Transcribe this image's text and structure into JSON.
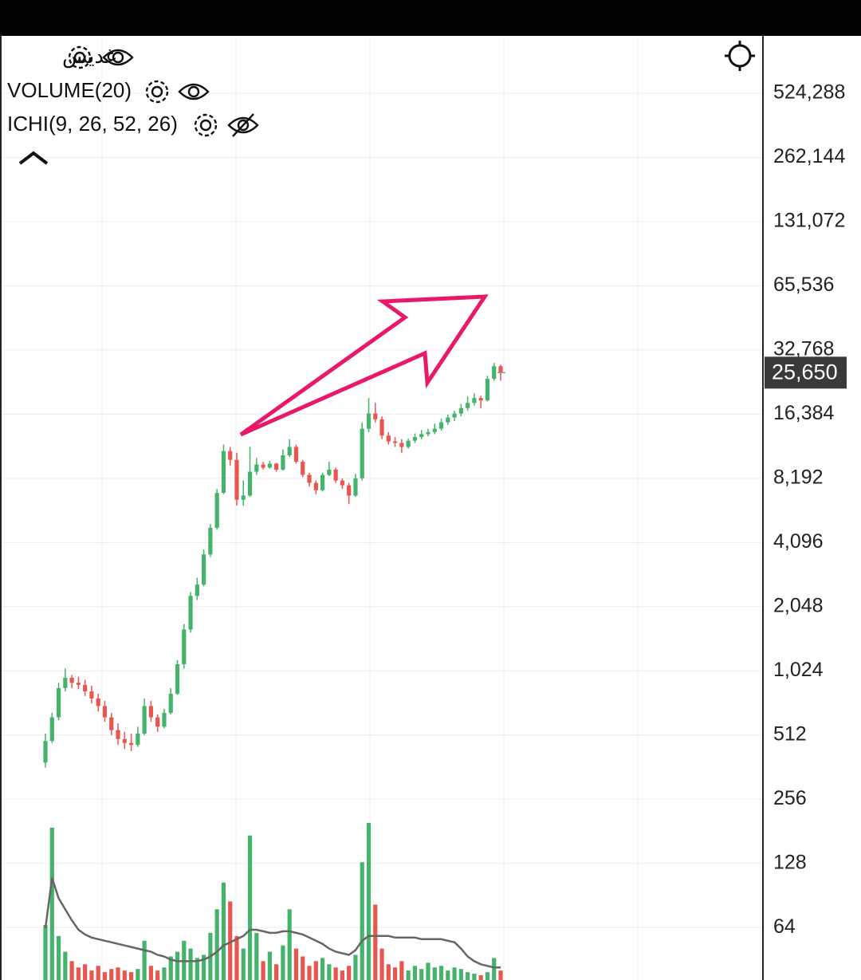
{
  "chart_data": {
    "type": "candlestick",
    "indicators": [
      "غديس",
      "VOLUME(20)",
      "ICHI(9, 26, 52, 26)"
    ],
    "log_scale": true,
    "log_base": 2,
    "grid": true,
    "ylim": [
      36.3,
      975000
    ],
    "yticks": [
      {
        "value": 524288,
        "label": "524,288"
      },
      {
        "value": 262144,
        "label": "262,144"
      },
      {
        "value": 131072,
        "label": "131,072"
      },
      {
        "value": 65536,
        "label": "65,536"
      },
      {
        "value": 32768,
        "label": "32,768"
      },
      {
        "value": 16384,
        "label": "16,384"
      },
      {
        "value": 8192,
        "label": "8,192"
      },
      {
        "value": 4096,
        "label": "4,096"
      },
      {
        "value": 2048,
        "label": "2,048"
      },
      {
        "value": 1024,
        "label": "1,024"
      },
      512,
      256,
      128,
      64
    ],
    "last_price": {
      "value": 25650,
      "label": "25,650"
    },
    "up_color": "#45b36b",
    "down_color": "#e8564f",
    "volume_ma_color": "#666666",
    "ohlc": [
      [
        380,
        520,
        360,
        480
      ],
      [
        480,
        650,
        470,
        620
      ],
      [
        620,
        900,
        600,
        850
      ],
      [
        850,
        1050,
        820,
        950
      ],
      [
        950,
        980,
        850,
        900
      ],
      [
        900,
        960,
        840,
        880
      ],
      [
        880,
        930,
        780,
        820
      ],
      [
        820,
        870,
        720,
        760
      ],
      [
        760,
        800,
        660,
        700
      ],
      [
        700,
        740,
        590,
        620
      ],
      [
        620,
        650,
        510,
        540
      ],
      [
        540,
        580,
        460,
        490
      ],
      [
        490,
        530,
        440,
        470
      ],
      [
        470,
        520,
        430,
        460
      ],
      [
        460,
        560,
        450,
        520
      ],
      [
        520,
        760,
        510,
        700
      ],
      [
        700,
        740,
        590,
        620
      ],
      [
        620,
        640,
        530,
        560
      ],
      [
        560,
        680,
        550,
        650
      ],
      [
        650,
        850,
        640,
        800
      ],
      [
        800,
        1150,
        790,
        1100
      ],
      [
        1100,
        1700,
        1050,
        1600
      ],
      [
        1600,
        2400,
        1550,
        2300
      ],
      [
        2300,
        2800,
        2200,
        2600
      ],
      [
        2600,
        3800,
        2550,
        3600
      ],
      [
        3600,
        5000,
        3500,
        4800
      ],
      [
        4800,
        7300,
        4700,
        7000
      ],
      [
        7000,
        11800,
        6900,
        11000
      ],
      [
        11000,
        11500,
        9400,
        10000
      ],
      [
        10000,
        10800,
        6100,
        6500
      ],
      [
        6500,
        8000,
        6100,
        6800
      ],
      [
        6800,
        11500,
        6700,
        8800
      ],
      [
        8800,
        10200,
        8500,
        9500
      ],
      [
        9500,
        9800,
        9000,
        9200
      ],
      [
        9200,
        9900,
        9100,
        9600
      ],
      [
        9600,
        9700,
        8800,
        9000
      ],
      [
        9000,
        11200,
        8900,
        10500
      ],
      [
        10500,
        12500,
        10300,
        11500
      ],
      [
        11500,
        11800,
        9600,
        9800
      ],
      [
        9800,
        10000,
        8300,
        8500
      ],
      [
        8500,
        8700,
        7500,
        7800
      ],
      [
        7800,
        8000,
        6900,
        7200
      ],
      [
        7200,
        8700,
        7100,
        8500
      ],
      [
        8500,
        9800,
        8400,
        9000
      ],
      [
        9000,
        9200,
        7800,
        8000
      ],
      [
        8000,
        8200,
        7300,
        7600
      ],
      [
        7600,
        7800,
        6200,
        6800
      ],
      [
        6800,
        8600,
        6700,
        8200
      ],
      [
        8200,
        15000,
        8000,
        14000
      ],
      [
        14000,
        19500,
        13500,
        16500
      ],
      [
        16500,
        18500,
        15000,
        15500
      ],
      [
        15500,
        16000,
        12500,
        13000
      ],
      [
        13000,
        13500,
        11800,
        12200
      ],
      [
        12200,
        12800,
        11500,
        12000
      ],
      [
        12000,
        12500,
        10800,
        11500
      ],
      [
        11500,
        12600,
        11300,
        12300
      ],
      [
        12300,
        13300,
        12000,
        12800
      ],
      [
        12800,
        13800,
        12500,
        13200
      ],
      [
        13200,
        14000,
        12900,
        13500
      ],
      [
        13500,
        14800,
        13200,
        14000
      ],
      [
        14000,
        15600,
        13700,
        15000
      ],
      [
        15000,
        16300,
        14600,
        15800
      ],
      [
        15800,
        17000,
        15200,
        16500
      ],
      [
        16500,
        18300,
        16000,
        17500
      ],
      [
        17500,
        19800,
        17000,
        18500
      ],
      [
        18500,
        20500,
        18000,
        19500
      ],
      [
        19500,
        20000,
        17500,
        19000
      ],
      [
        19000,
        24800,
        18800,
        24000
      ],
      [
        24000,
        28500,
        23500,
        27500
      ],
      [
        27500,
        28000,
        23500,
        25650
      ]
    ],
    "vlim": [
      0,
      100
    ],
    "volume": [
      35,
      97,
      28,
      18,
      12,
      8,
      10,
      6,
      9,
      5,
      7,
      8,
      6,
      5,
      7,
      25,
      9,
      6,
      8,
      15,
      18,
      25,
      20,
      14,
      16,
      30,
      45,
      62,
      50,
      28,
      20,
      92,
      30,
      12,
      18,
      10,
      22,
      45,
      20,
      15,
      9,
      12,
      14,
      10,
      8,
      6,
      9,
      16,
      75,
      100,
      48,
      20,
      10,
      8,
      12,
      6,
      9,
      7,
      11,
      8,
      9,
      6,
      8,
      7,
      5,
      4,
      3,
      5,
      14,
      6
    ],
    "volume_ma": [
      33,
      65,
      52,
      45,
      38,
      32,
      29,
      27,
      26,
      25,
      24,
      23,
      22,
      21,
      20,
      19,
      18,
      16,
      15,
      13,
      12,
      12,
      12,
      12,
      13,
      15,
      18,
      22,
      24,
      26,
      28,
      32,
      32,
      31,
      30,
      30,
      31,
      31,
      30,
      29,
      27,
      25,
      23,
      20,
      18,
      17,
      16,
      19,
      25,
      28,
      28,
      28,
      28,
      27,
      27,
      27,
      27,
      26,
      26,
      26,
      26,
      25,
      24,
      20,
      15,
      12,
      10,
      9,
      8,
      8
    ]
  }
}
